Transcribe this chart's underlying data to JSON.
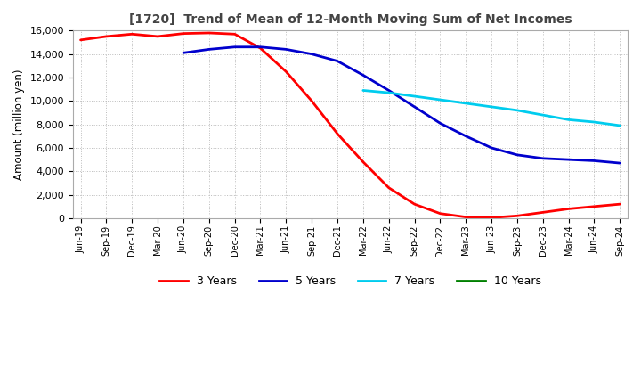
{
  "title": "[1720]  Trend of Mean of 12-Month Moving Sum of Net Incomes",
  "ylabel": "Amount (million yen)",
  "ylim": [
    0,
    16000
  ],
  "yticks": [
    0,
    2000,
    4000,
    6000,
    8000,
    10000,
    12000,
    14000,
    16000
  ],
  "background_color": "#ffffff",
  "grid_color": "#bbbbbb",
  "legend_labels": [
    "3 Years",
    "5 Years",
    "7 Years",
    "10 Years"
  ],
  "legend_colors": [
    "#ff0000",
    "#0000cd",
    "#00ccee",
    "#008000"
  ],
  "x_labels": [
    "Jun-19",
    "Sep-19",
    "Dec-19",
    "Mar-20",
    "Jun-20",
    "Sep-20",
    "Dec-20",
    "Mar-21",
    "Jun-21",
    "Sep-21",
    "Dec-21",
    "Mar-22",
    "Jun-22",
    "Sep-22",
    "Dec-22",
    "Mar-23",
    "Jun-23",
    "Sep-23",
    "Dec-23",
    "Mar-24",
    "Jun-24",
    "Sep-24"
  ],
  "series_3y": [
    15200,
    15500,
    15700,
    15500,
    15750,
    15800,
    15700,
    14500,
    12500,
    10000,
    7200,
    4800,
    2600,
    1200,
    400,
    100,
    50,
    200,
    500,
    800,
    1000,
    1200
  ],
  "series_5y": [
    null,
    null,
    null,
    null,
    14100,
    14400,
    14600,
    14600,
    14400,
    14000,
    13400,
    12200,
    10900,
    9500,
    8100,
    7000,
    6000,
    5400,
    5100,
    5000,
    4900,
    4700
  ],
  "series_7y": [
    null,
    null,
    null,
    null,
    null,
    null,
    null,
    null,
    null,
    null,
    null,
    10900,
    10700,
    10400,
    10100,
    9800,
    9500,
    9200,
    8800,
    8400,
    8200,
    7900
  ],
  "series_10y": [
    null,
    null,
    null,
    null,
    null,
    null,
    null,
    null,
    null,
    null,
    null,
    null,
    null,
    null,
    null,
    null,
    null,
    null,
    null,
    null,
    null,
    null
  ]
}
